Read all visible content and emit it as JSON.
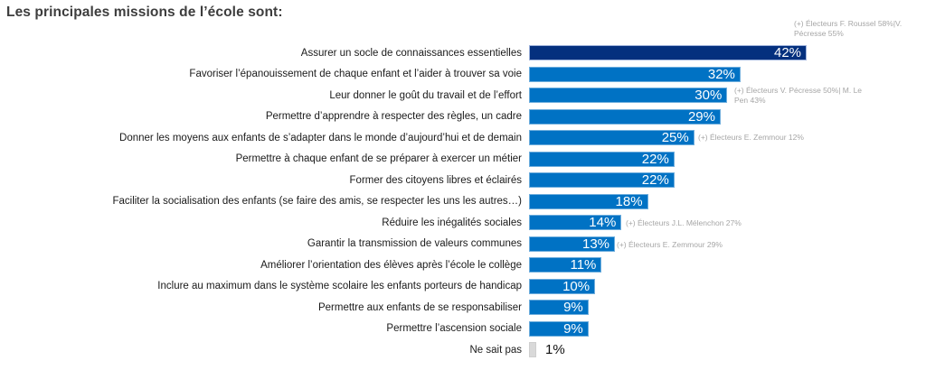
{
  "title": "Les principales missions de l’école sont:",
  "chart_data": {
    "type": "bar",
    "orientation": "horizontal",
    "unit": "%",
    "xlim": [
      0,
      48
    ],
    "title": "Les principales missions de l’école sont:",
    "categories": [
      "Assurer un socle de connaissances essentielles",
      "Favoriser l’épanouissement de chaque enfant et l’aider à trouver sa voie",
      "Leur donner le goût du travail et de l’effort",
      "Permettre d’apprendre à respecter des règles, un cadre",
      "Donner les moyens aux enfants de s’adapter dans le monde d’aujourd’hui et de demain",
      "Permettre à chaque enfant de se préparer à exercer un métier",
      "Former des citoyens libres et éclairés",
      "Faciliter la socialisation des enfants (se faire des amis, se respecter les uns les autres…)",
      "Réduire les inégalités sociales",
      "Garantir la transmission de valeurs communes",
      "Améliorer l’orientation des élèves après l’école le collège",
      "Inclure au maximum dans le système scolaire les enfants porteurs de handicap",
      "Permettre aux enfants de se responsabiliser",
      "Permettre l’ascension sociale",
      "Ne sait pas"
    ],
    "values": [
      42,
      32,
      30,
      29,
      25,
      22,
      22,
      18,
      14,
      13,
      11,
      10,
      9,
      9,
      1
    ],
    "value_labels": [
      "42%",
      "32%",
      "30%",
      "29%",
      "25%",
      "22%",
      "22%",
      "18%",
      "14%",
      "13%",
      "11%",
      "10%",
      "9%",
      "9%",
      "1%"
    ],
    "bar_roles": [
      "highlight",
      "primary",
      "primary",
      "primary",
      "primary",
      "primary",
      "primary",
      "primary",
      "primary",
      "primary",
      "primary",
      "primary",
      "primary",
      "primary",
      "neutral"
    ],
    "annotations": [
      {
        "row": 1,
        "lines": [
          "(+) Électeurs F. Roussel 58%|V.",
          "Pécresse 55%"
        ]
      },
      {
        "row": 3,
        "lines": [
          "(+) Électeurs V. Pécresse 50%| M. Le",
          "Pen 43%"
        ]
      },
      {
        "row": 5,
        "lines": [
          "(+) Électeurs  E. Zemmour 12%"
        ]
      },
      {
        "row": 9,
        "lines": [
          "(+) Électeurs J.L. Mélenchon 27%"
        ]
      },
      {
        "row": 10,
        "lines": [
          "(+) Électeurs  E. Zemmour 29%"
        ]
      }
    ],
    "colors": {
      "bar_primary": "#0072C4",
      "bar_primary_border": "#6FAEDD",
      "bar_highlight": "#04307E",
      "bar_highlight_border": "#9FB3DB",
      "bar_neutral": "#D9D9D9",
      "bar_neutral_border": "#CFCFCF",
      "value_label": "#FFFFFF",
      "outside_value_label": "#111111",
      "annotation_text": "#A6A6A6",
      "title_text": "#3D3D3D",
      "category_text": "#1A1A1A"
    }
  }
}
